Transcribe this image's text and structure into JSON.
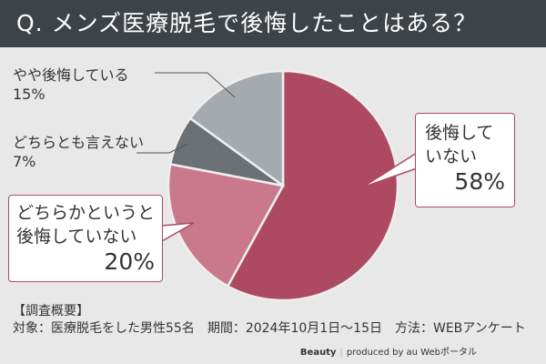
{
  "title": "Q. メンズ医療脱毛で後悔したことはある？",
  "chart_data": {
    "type": "pie",
    "title": "Q. メンズ医療脱毛で後悔したことはある？",
    "start": "top, clockwise",
    "slices": [
      {
        "label": "後悔していない",
        "label_lines": [
          "後悔して",
          "いない"
        ],
        "value": 58,
        "display": "58%",
        "color": "#ad4a62"
      },
      {
        "label": "どちらかというと後悔していない",
        "label_lines": [
          "どちらかというと",
          "後悔していない"
        ],
        "value": 20,
        "display": "20%",
        "color": "#c9798b"
      },
      {
        "label": "どちらとも言えない",
        "label_lines": [
          "どちらとも言えない"
        ],
        "value": 7,
        "display": "7%",
        "color": "#6b7074"
      },
      {
        "label": "やや後悔している",
        "label_lines": [
          "やや後悔している"
        ],
        "value": 15,
        "display": "15%",
        "color": "#a4aaae"
      }
    ]
  },
  "survey": {
    "heading": "【調査概要】",
    "details": "対象：医療脱毛をした男性55名　期間：2024年10月1日〜15日　方法：WEBアンケート"
  },
  "credit": {
    "brand": "Beauty",
    "text": "produced by au Webポータル"
  }
}
